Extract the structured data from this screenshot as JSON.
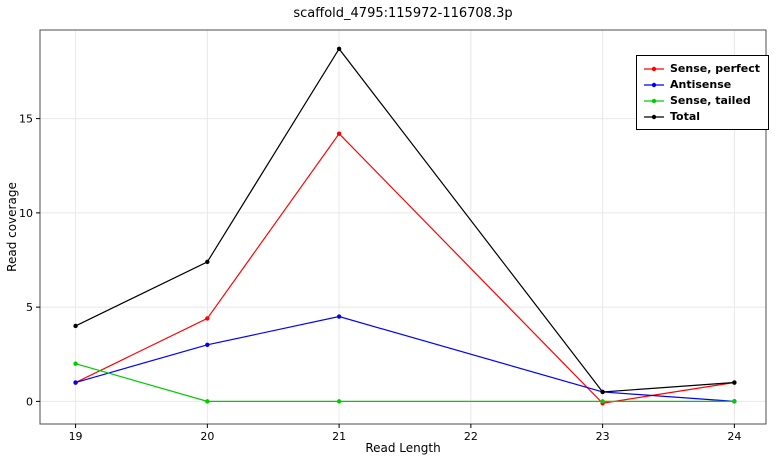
{
  "chart_data": {
    "type": "line",
    "title": "scaffold_4795:115972-116708.3p",
    "xlabel": "Read Length",
    "ylabel": "Read coverage",
    "x": [
      19,
      20,
      21,
      23,
      24
    ],
    "xticks": [
      19,
      20,
      21,
      22,
      23,
      24
    ],
    "yticks": [
      0,
      5,
      10,
      15
    ],
    "xlim": [
      18.73,
      24.24
    ],
    "ylim": [
      -1.2,
      19.7
    ],
    "grid": true,
    "grid_color": "#e8e8e8",
    "panel_border_color": "#4d4d4d",
    "tick_color": "#000000",
    "legend_position": "top-right",
    "series": [
      {
        "name": "Sense, perfect",
        "color": "#ff0000",
        "values": [
          1.0,
          4.4,
          14.2,
          -0.1,
          1.0
        ]
      },
      {
        "name": "Antisense",
        "color": "#0000ff",
        "values": [
          1.0,
          3.0,
          4.5,
          0.5,
          0.0
        ]
      },
      {
        "name": "Sense, tailed",
        "color": "#00cc00",
        "values": [
          2.0,
          0.0,
          0.0,
          0.0,
          0.0
        ]
      },
      {
        "name": "Total",
        "color": "#000000",
        "values": [
          4.0,
          7.4,
          18.7,
          0.5,
          1.0
        ]
      }
    ]
  }
}
